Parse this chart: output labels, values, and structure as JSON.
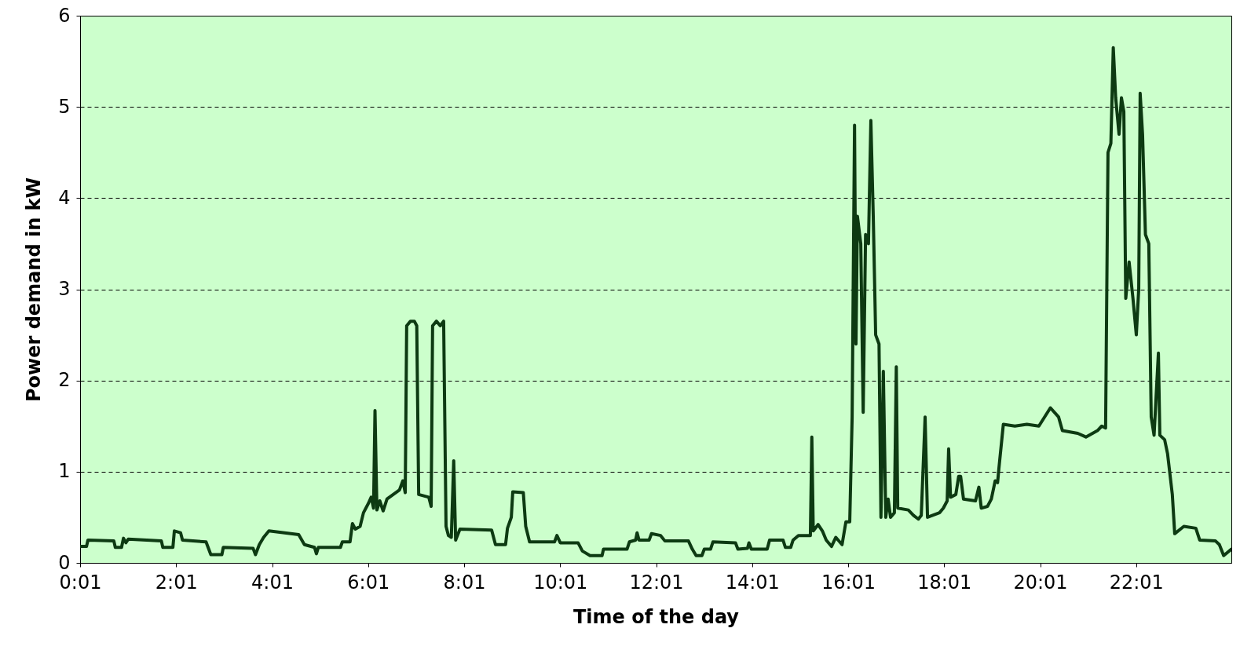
{
  "chart_data": {
    "type": "line",
    "xlabel": "Time of the day",
    "ylabel": "Power demand in kW",
    "xlim": [
      0.0167,
      24.0
    ],
    "ylim": [
      0,
      6
    ],
    "xticks": [
      {
        "value": 0.0167,
        "label": "0:01"
      },
      {
        "value": 2.0167,
        "label": "2:01"
      },
      {
        "value": 4.0167,
        "label": "4:01"
      },
      {
        "value": 6.0167,
        "label": "6:01"
      },
      {
        "value": 8.0167,
        "label": "8:01"
      },
      {
        "value": 10.0167,
        "label": "10:01"
      },
      {
        "value": 12.0167,
        "label": "12:01"
      },
      {
        "value": 14.0167,
        "label": "14:01"
      },
      {
        "value": 16.0167,
        "label": "16:01"
      },
      {
        "value": 18.0167,
        "label": "18:01"
      },
      {
        "value": 20.0167,
        "label": "20:01"
      },
      {
        "value": 22.0167,
        "label": "22:01"
      }
    ],
    "yticks": [
      0,
      1,
      2,
      3,
      4,
      5,
      6
    ],
    "grid": "y",
    "marker": "none",
    "line_style": "solid",
    "x": [
      0.02,
      0.15,
      0.18,
      0.72,
      0.75,
      0.88,
      0.92,
      0.97,
      1.02,
      1.71,
      1.74,
      1.95,
      1.98,
      2.11,
      2.15,
      2.64,
      2.74,
      2.97,
      3.0,
      3.62,
      3.67,
      3.75,
      3.84,
      3.95,
      4.57,
      4.69,
      4.9,
      4.94,
      4.98,
      5.44,
      5.48,
      5.64,
      5.69,
      5.75,
      5.85,
      5.92,
      6.02,
      6.08,
      6.13,
      6.16,
      6.2,
      6.26,
      6.33,
      6.41,
      6.54,
      6.67,
      6.74,
      6.79,
      6.82,
      6.9,
      6.98,
      7.03,
      7.07,
      7.28,
      7.33,
      7.36,
      7.44,
      7.52,
      7.59,
      7.64,
      7.69,
      7.75,
      7.8,
      7.84,
      7.93,
      8.59,
      8.67,
      8.88,
      8.92,
      9.0,
      9.03,
      9.25,
      9.3,
      9.38,
      9.9,
      9.95,
      10.02,
      10.39,
      10.48,
      10.64,
      10.89,
      10.92,
      11.41,
      11.46,
      11.59,
      11.62,
      11.66,
      11.87,
      11.92,
      12.11,
      12.2,
      12.69,
      12.77,
      12.85,
      12.97,
      13.02,
      13.15,
      13.2,
      13.67,
      13.72,
      13.92,
      13.95,
      14.0,
      14.33,
      14.38,
      14.66,
      14.71,
      14.82,
      14.87,
      14.98,
      15.23,
      15.26,
      15.29,
      15.39,
      15.48,
      15.56,
      15.67,
      15.76,
      15.89,
      15.97,
      16.05,
      16.1,
      16.15,
      16.18,
      16.21,
      16.28,
      16.33,
      16.38,
      16.44,
      16.49,
      16.54,
      16.59,
      16.66,
      16.7,
      16.75,
      16.8,
      16.85,
      16.9,
      16.98,
      17.02,
      17.05,
      17.27,
      17.38,
      17.48,
      17.54,
      17.62,
      17.67,
      17.92,
      18.0,
      18.08,
      18.11,
      18.15,
      18.26,
      18.32,
      18.36,
      18.42,
      18.67,
      18.74,
      18.79,
      18.92,
      19.0,
      19.08,
      19.13,
      19.16,
      19.25,
      19.49,
      19.74,
      19.99,
      20.23,
      20.4,
      20.48,
      20.8,
      20.97,
      21.21,
      21.3,
      21.38,
      21.43,
      21.49,
      21.54,
      21.59,
      21.66,
      21.71,
      21.76,
      21.8,
      21.87,
      21.95,
      22.02,
      22.07,
      22.1,
      22.15,
      22.21,
      22.28,
      22.33,
      22.39,
      22.48,
      22.51,
      22.61,
      22.67,
      22.77,
      22.82,
      23.01,
      23.26,
      23.34,
      23.67,
      23.75,
      23.84,
      24.0
    ],
    "series": [
      {
        "color": "#0d3a12",
        "values": [
          0.18,
          0.18,
          0.25,
          0.24,
          0.17,
          0.17,
          0.27,
          0.22,
          0.26,
          0.24,
          0.17,
          0.17,
          0.35,
          0.33,
          0.25,
          0.23,
          0.09,
          0.09,
          0.17,
          0.16,
          0.09,
          0.2,
          0.28,
          0.35,
          0.31,
          0.2,
          0.17,
          0.1,
          0.17,
          0.17,
          0.23,
          0.23,
          0.43,
          0.37,
          0.4,
          0.55,
          0.65,
          0.72,
          0.6,
          1.67,
          0.58,
          0.68,
          0.57,
          0.7,
          0.75,
          0.8,
          0.9,
          0.77,
          2.6,
          2.65,
          2.65,
          2.6,
          0.75,
          0.72,
          0.62,
          2.6,
          2.65,
          2.6,
          2.65,
          0.4,
          0.3,
          0.28,
          1.12,
          0.25,
          0.37,
          0.36,
          0.2,
          0.2,
          0.38,
          0.5,
          0.78,
          0.77,
          0.4,
          0.23,
          0.23,
          0.3,
          0.22,
          0.22,
          0.13,
          0.08,
          0.08,
          0.15,
          0.15,
          0.23,
          0.25,
          0.33,
          0.25,
          0.25,
          0.32,
          0.3,
          0.24,
          0.24,
          0.15,
          0.08,
          0.08,
          0.15,
          0.15,
          0.23,
          0.22,
          0.15,
          0.16,
          0.22,
          0.15,
          0.15,
          0.25,
          0.25,
          0.17,
          0.17,
          0.25,
          0.3,
          0.3,
          1.38,
          0.35,
          0.42,
          0.35,
          0.25,
          0.18,
          0.28,
          0.2,
          0.45,
          0.45,
          1.6,
          4.8,
          2.4,
          3.8,
          3.5,
          1.65,
          3.6,
          3.5,
          4.85,
          3.8,
          2.5,
          2.4,
          0.5,
          2.1,
          0.5,
          0.7,
          0.5,
          0.55,
          2.15,
          0.6,
          0.58,
          0.52,
          0.48,
          0.52,
          1.6,
          0.5,
          0.55,
          0.6,
          0.68,
          1.25,
          0.72,
          0.75,
          0.95,
          0.95,
          0.7,
          0.68,
          0.83,
          0.6,
          0.62,
          0.7,
          0.9,
          0.88,
          1.05,
          1.52,
          1.5,
          1.52,
          1.5,
          1.7,
          1.6,
          1.45,
          1.42,
          1.38,
          1.45,
          1.5,
          1.48,
          4.5,
          4.6,
          5.65,
          5.1,
          4.7,
          5.1,
          4.95,
          2.9,
          3.3,
          2.9,
          2.5,
          3.0,
          5.15,
          4.7,
          3.6,
          3.5,
          1.6,
          1.4,
          2.3,
          1.4,
          1.35,
          1.2,
          0.75,
          0.32,
          0.4,
          0.38,
          0.25,
          0.24,
          0.2,
          0.08,
          0.15
        ]
      }
    ]
  }
}
